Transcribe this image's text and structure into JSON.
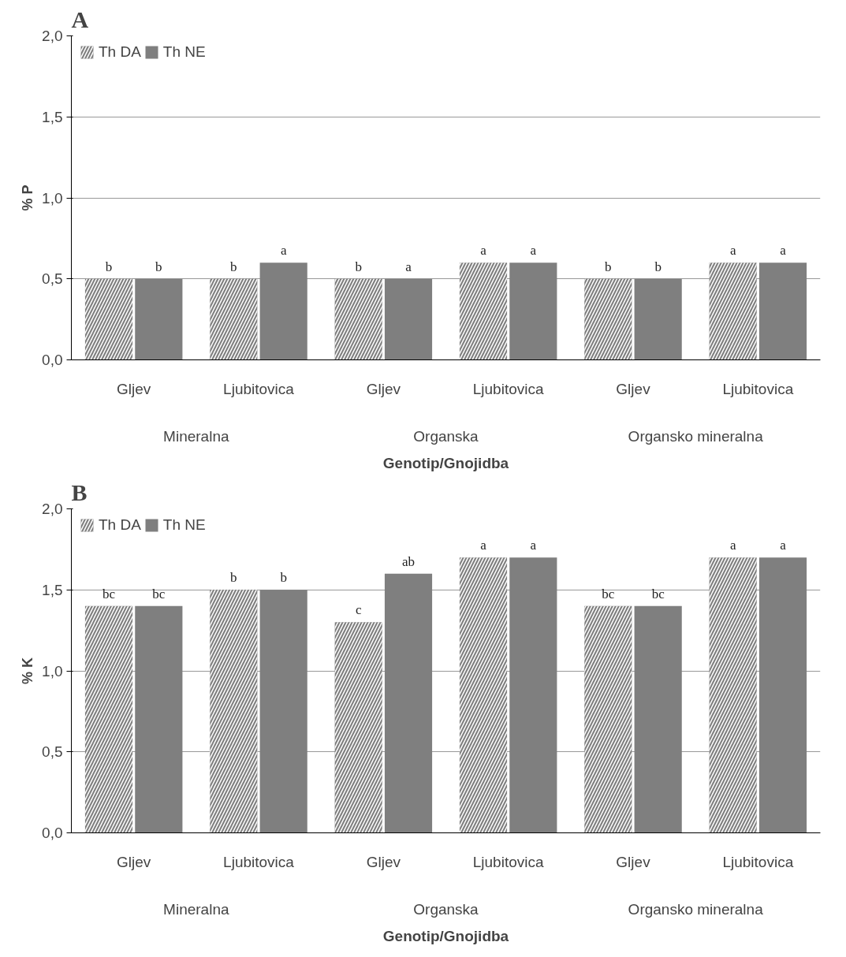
{
  "chart_data": [
    {
      "type": "bar",
      "title": "A",
      "xlabel": "Genotip/Gnojidba",
      "ylabel": "% P",
      "categories": [
        "Gljev",
        "Ljubitovica",
        "Gljev",
        "Ljubitovica",
        "Gljev",
        "Ljubitovica"
      ],
      "series": [
        {
          "name": "Th DA",
          "color": "#7f7f7f",
          "values": [
            0.5,
            0.5,
            0.5,
            0.6,
            0.5,
            0.6
          ],
          "value_labels": [
            "b",
            "b",
            "b",
            "a",
            "b",
            "a"
          ]
        },
        {
          "name": "Th NE",
          "color": "#7f7f7f",
          "values": [
            0.5,
            0.6,
            0.5,
            0.6,
            0.5,
            0.6
          ],
          "value_labels": [
            "b",
            "a",
            "a",
            "a",
            "b",
            "a"
          ]
        }
      ],
      "annotations": [
        "Mineralna",
        "Organska",
        "Organsko mineralna"
      ],
      "ylim": [
        0,
        2
      ],
      "yticks": [
        {
          "value": 0,
          "label": "0,0"
        },
        {
          "value": 0.5,
          "label": "0,5"
        },
        {
          "value": 1,
          "label": "1,0"
        },
        {
          "value": 1.5,
          "label": "1,5"
        },
        {
          "value": 2,
          "label": "2,0"
        }
      ],
      "grid": "y",
      "legend": "top left"
    },
    {
      "type": "bar",
      "title": "B",
      "xlabel": "Genotip/Gnojidba",
      "ylabel": "% K",
      "categories": [
        "Gljev",
        "Ljubitovica",
        "Gljev",
        "Ljubitovica",
        "Gljev",
        "Ljubitovica"
      ],
      "series": [
        {
          "name": "Th DA",
          "color": "#7f7f7f",
          "values": [
            1.4,
            1.5,
            1.3,
            1.7,
            1.4,
            1.7
          ],
          "value_labels": [
            "bc",
            "b",
            "c",
            "a",
            "bc",
            "a"
          ]
        },
        {
          "name": "Th NE",
          "color": "#7f7f7f",
          "values": [
            1.4,
            1.5,
            1.6,
            1.7,
            1.4,
            1.7
          ],
          "value_labels": [
            "bc",
            "b",
            "ab",
            "a",
            "bc",
            "a"
          ]
        }
      ],
      "annotations": [
        "Mineralna",
        "Organska",
        "Organsko mineralna"
      ],
      "ylim": [
        0,
        2
      ],
      "yticks": [
        {
          "value": 0,
          "label": "0,0"
        },
        {
          "value": 0.5,
          "label": "0,5"
        },
        {
          "value": 1,
          "label": "1,0"
        },
        {
          "value": 1.5,
          "label": "1,5"
        },
        {
          "value": 2,
          "label": "2,0"
        }
      ],
      "grid": "y",
      "legend": "top left"
    }
  ]
}
